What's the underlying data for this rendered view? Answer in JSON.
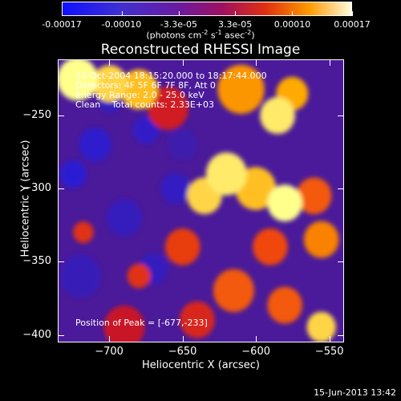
{
  "chart_data": {
    "type": "heatmap",
    "title": "Reconstructed RHESSI Image",
    "xlabel": "Heliocentric X (arcsec)",
    "ylabel": "Heliocentric Y (arcsec)",
    "xlim": [
      -735,
      -540
    ],
    "ylim": [
      -405,
      -212
    ],
    "xticks": [
      "-700",
      "-650",
      "-600",
      "-550"
    ],
    "xtick_values": [
      -700,
      -650,
      -600,
      -550
    ],
    "yticks": [
      "-250",
      "-300",
      "-350",
      "-400"
    ],
    "ytick_values": [
      -250,
      -300,
      -350,
      -400
    ],
    "colorbar": {
      "ticks": [
        "-0.00017",
        "-0.00010",
        "-3.3e-05",
        "3.3e-05",
        "0.00010",
        "0.00017"
      ],
      "tick_values": [
        -0.00017,
        -0.0001,
        -3.3e-05,
        3.3e-05,
        0.0001,
        0.00017
      ],
      "range": [
        -0.00017,
        0.00017
      ],
      "units_parts": [
        "(photons cm",
        "-2",
        " s",
        "-1",
        " asec",
        "-2",
        ")"
      ]
    },
    "annotations": [
      "15-Oct-2004 18:15:20.000 to 18:17:44.000",
      "Detectors: 4F 5F 6F 7F 8F, Att 0",
      "Energy Range: 2.0 - 25.0 keV",
      "Clean    Total counts: 2.33E+03"
    ],
    "peak_label": "Position of Peak = [-677,-233]",
    "peak": [
      -677,
      -233
    ],
    "sources": [
      {
        "x": -722,
        "y": -225,
        "v": 1.0,
        "s": 14
      },
      {
        "x": -700,
        "y": -228,
        "v": 0.9,
        "s": 12
      },
      {
        "x": -680,
        "y": -232,
        "v": 0.85,
        "s": 13
      },
      {
        "x": -660,
        "y": -245,
        "v": 0.35,
        "s": 14
      },
      {
        "x": -610,
        "y": -232,
        "v": 0.75,
        "s": 16
      },
      {
        "x": -585,
        "y": -250,
        "v": 0.95,
        "s": 12
      },
      {
        "x": -575,
        "y": -235,
        "v": 0.8,
        "s": 11
      },
      {
        "x": -620,
        "y": -290,
        "v": 0.95,
        "s": 14
      },
      {
        "x": -635,
        "y": -305,
        "v": 0.9,
        "s": 12
      },
      {
        "x": -600,
        "y": -300,
        "v": 0.85,
        "s": 14
      },
      {
        "x": -580,
        "y": -310,
        "v": 1.0,
        "s": 12
      },
      {
        "x": -560,
        "y": -305,
        "v": 0.6,
        "s": 12
      },
      {
        "x": -555,
        "y": -335,
        "v": 0.7,
        "s": 12
      },
      {
        "x": -590,
        "y": -340,
        "v": 0.55,
        "s": 12
      },
      {
        "x": -650,
        "y": -340,
        "v": 0.5,
        "s": 12
      },
      {
        "x": -615,
        "y": -370,
        "v": 0.6,
        "s": 14
      },
      {
        "x": -580,
        "y": -380,
        "v": 0.6,
        "s": 12
      },
      {
        "x": -555,
        "y": -395,
        "v": 0.9,
        "s": 10
      },
      {
        "x": -640,
        "y": -390,
        "v": 0.4,
        "s": 12
      },
      {
        "x": -690,
        "y": -395,
        "v": 0.3,
        "s": 14
      },
      {
        "x": -680,
        "y": -360,
        "v": 0.45,
        "s": 8
      },
      {
        "x": -718,
        "y": -330,
        "v": 0.45,
        "s": 7
      },
      {
        "x": -690,
        "y": -320,
        "v": -0.35,
        "s": 12
      },
      {
        "x": -710,
        "y": -270,
        "v": -0.5,
        "s": 11
      },
      {
        "x": -725,
        "y": -290,
        "v": -0.55,
        "s": 9
      },
      {
        "x": -700,
        "y": -240,
        "v": -0.35,
        "s": 8
      },
      {
        "x": -675,
        "y": -260,
        "v": -0.45,
        "s": 9
      },
      {
        "x": -655,
        "y": -300,
        "v": -0.4,
        "s": 10
      },
      {
        "x": -670,
        "y": -355,
        "v": -0.35,
        "s": 10
      },
      {
        "x": -720,
        "y": -360,
        "v": -0.3,
        "s": 14
      },
      {
        "x": -650,
        "y": -270,
        "v": -0.2,
        "s": 10
      }
    ]
  },
  "footer": "15-Jun-2013 13:42"
}
